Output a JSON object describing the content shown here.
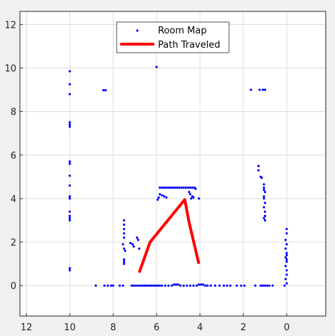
{
  "chart_data": {
    "type": "scatter",
    "x_reversed": true,
    "xlim": [
      -1.8,
      12.3
    ],
    "ylim": [
      -1.4,
      12.6
    ],
    "x_ticks": [
      12,
      10,
      8,
      6,
      4,
      2,
      0
    ],
    "y_ticks": [
      0,
      2,
      4,
      6,
      8,
      10,
      12
    ],
    "x_tick_labels": [
      "12",
      "10",
      "8",
      "6",
      "4",
      "2",
      "0"
    ],
    "y_tick_labels": [
      "0",
      "2",
      "4",
      "6",
      "8",
      "10",
      "12"
    ],
    "grid": true,
    "legend_position": "top-center",
    "colors": {
      "map": "#0000ff",
      "path": "#ff0000",
      "grid": "#dcdcdc",
      "axes_bg": "#ffffff",
      "figure_bg": "#f0f0f0",
      "axis": "#262626"
    },
    "series": [
      {
        "name": "Room Map",
        "kind": "scatter",
        "points": [
          [
            10,
            9.85
          ],
          [
            10,
            9.25
          ],
          [
            10,
            8.8
          ],
          [
            10,
            7.5
          ],
          [
            10,
            7.4
          ],
          [
            10,
            7.3
          ],
          [
            10,
            5.7
          ],
          [
            10,
            5.6
          ],
          [
            10,
            5.05
          ],
          [
            10,
            4.6
          ],
          [
            10,
            4.1
          ],
          [
            10,
            4.0
          ],
          [
            10,
            3.4
          ],
          [
            10,
            3.2
          ],
          [
            10,
            3.1
          ],
          [
            10,
            3.0
          ],
          [
            10,
            0.8
          ],
          [
            10,
            0.7
          ],
          [
            8.45,
            8.98
          ],
          [
            8.35,
            8.98
          ],
          [
            6.0,
            10.05
          ],
          [
            1.65,
            9.0
          ],
          [
            1.25,
            9.0
          ],
          [
            1.1,
            9.0
          ],
          [
            1.0,
            9.0
          ],
          [
            1.3,
            5.5
          ],
          [
            1.3,
            5.3
          ],
          [
            1.2,
            5.0
          ],
          [
            1.15,
            4.95
          ],
          [
            1.05,
            4.65
          ],
          [
            1.05,
            4.5
          ],
          [
            1.05,
            4.4
          ],
          [
            1.0,
            4.3
          ],
          [
            1.05,
            4.1
          ],
          [
            1.05,
            4.0
          ],
          [
            1.0,
            3.8
          ],
          [
            1.05,
            3.6
          ],
          [
            1.0,
            3.4
          ],
          [
            1.0,
            3.2
          ],
          [
            1.05,
            3.1
          ],
          [
            1.0,
            3.0
          ],
          [
            0,
            2.6
          ],
          [
            0,
            2.4
          ],
          [
            0.05,
            2.1
          ],
          [
            0,
            1.9
          ],
          [
            0.05,
            1.7
          ],
          [
            0,
            1.5
          ],
          [
            0,
            1.4
          ],
          [
            0.05,
            1.3
          ],
          [
            0,
            1.2
          ],
          [
            0,
            1.1
          ],
          [
            0.05,
            0.9
          ],
          [
            0,
            0.7
          ],
          [
            0,
            0.5
          ],
          [
            0.05,
            0.3
          ],
          [
            0,
            0.1
          ],
          [
            0.1,
            0.0
          ],
          [
            5.85,
            4.5
          ],
          [
            5.75,
            4.5
          ],
          [
            5.65,
            4.5
          ],
          [
            5.55,
            4.5
          ],
          [
            5.45,
            4.5
          ],
          [
            5.35,
            4.5
          ],
          [
            5.25,
            4.5
          ],
          [
            5.15,
            4.5
          ],
          [
            5.05,
            4.5
          ],
          [
            4.95,
            4.5
          ],
          [
            4.85,
            4.5
          ],
          [
            4.75,
            4.5
          ],
          [
            4.65,
            4.5
          ],
          [
            4.55,
            4.5
          ],
          [
            4.45,
            4.5
          ],
          [
            4.35,
            4.5
          ],
          [
            4.25,
            4.5
          ],
          [
            4.2,
            4.45
          ],
          [
            5.85,
            4.2
          ],
          [
            5.75,
            4.15
          ],
          [
            5.65,
            4.1
          ],
          [
            5.55,
            4.05
          ],
          [
            5.9,
            4.05
          ],
          [
            5.95,
            3.95
          ],
          [
            4.5,
            4.3
          ],
          [
            4.45,
            4.2
          ],
          [
            4.35,
            4.1
          ],
          [
            4.3,
            4.05
          ],
          [
            4.4,
            4.0
          ],
          [
            4.05,
            4.0
          ],
          [
            7.5,
            3.0
          ],
          [
            7.5,
            2.8
          ],
          [
            7.5,
            2.6
          ],
          [
            7.5,
            2.4
          ],
          [
            7.5,
            2.2
          ],
          [
            7.55,
            1.9
          ],
          [
            7.5,
            1.7
          ],
          [
            7.45,
            1.6
          ],
          [
            7.5,
            1.2
          ],
          [
            7.5,
            1.1
          ],
          [
            7.5,
            1.0
          ],
          [
            7.2,
            1.95
          ],
          [
            7.1,
            1.9
          ],
          [
            7.05,
            1.8
          ],
          [
            6.9,
            2.2
          ],
          [
            6.85,
            2.1
          ],
          [
            6.8,
            1.7
          ],
          [
            8.8,
            0
          ],
          [
            8.4,
            0
          ],
          [
            8.25,
            0
          ],
          [
            8.1,
            0
          ],
          [
            8.0,
            0
          ],
          [
            7.7,
            0
          ],
          [
            7.55,
            0
          ],
          [
            7.15,
            0
          ],
          [
            7.05,
            0
          ],
          [
            6.95,
            0
          ],
          [
            6.85,
            0
          ],
          [
            6.75,
            0
          ],
          [
            6.65,
            0
          ],
          [
            6.55,
            0
          ],
          [
            6.45,
            0
          ],
          [
            6.35,
            0
          ],
          [
            6.25,
            0
          ],
          [
            6.15,
            0
          ],
          [
            6.05,
            0
          ],
          [
            5.95,
            0
          ],
          [
            5.85,
            0
          ],
          [
            5.75,
            0
          ],
          [
            5.6,
            0
          ],
          [
            5.45,
            0
          ],
          [
            5.3,
            0
          ],
          [
            5.2,
            0.05
          ],
          [
            5.1,
            0.05
          ],
          [
            5.0,
            0.05
          ],
          [
            4.9,
            0
          ],
          [
            4.75,
            0
          ],
          [
            4.6,
            0
          ],
          [
            4.45,
            0
          ],
          [
            4.3,
            0
          ],
          [
            4.15,
            0
          ],
          [
            4.05,
            0.05
          ],
          [
            3.95,
            0.05
          ],
          [
            3.85,
            0.05
          ],
          [
            3.75,
            0
          ],
          [
            3.65,
            0
          ],
          [
            3.5,
            0
          ],
          [
            3.3,
            0
          ],
          [
            3.1,
            0
          ],
          [
            2.9,
            0
          ],
          [
            2.75,
            0
          ],
          [
            2.6,
            0
          ],
          [
            2.3,
            0
          ],
          [
            2.1,
            0
          ],
          [
            1.95,
            0
          ],
          [
            1.45,
            0
          ],
          [
            1.2,
            0
          ],
          [
            1.1,
            0
          ],
          [
            1.0,
            0
          ],
          [
            0.9,
            0
          ],
          [
            0.8,
            0
          ],
          [
            0.65,
            0
          ]
        ]
      },
      {
        "name": "Path Traveled",
        "kind": "line",
        "points": [
          [
            6.8,
            0.6
          ],
          [
            6.3,
            2.0
          ],
          [
            4.7,
            3.95
          ],
          [
            4.5,
            2.9
          ],
          [
            4.05,
            1.0
          ]
        ]
      }
    ]
  }
}
